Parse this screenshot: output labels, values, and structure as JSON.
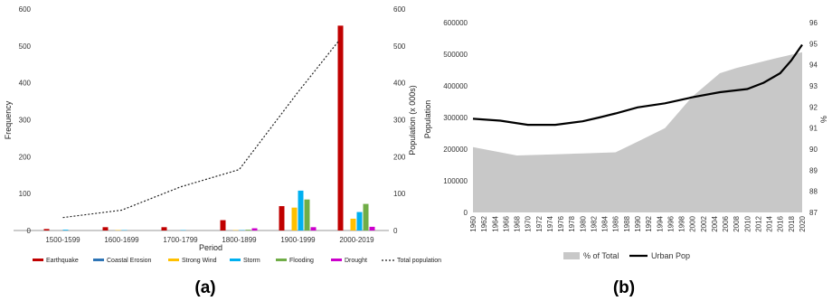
{
  "chart_data": [
    {
      "type": "bar",
      "panel_label": "(a)",
      "xlabel": "Period",
      "ylabel": "Frequency",
      "y2label": "Population (x 000s)",
      "ylim": [
        0,
        600
      ],
      "y2lim": [
        0,
        600
      ],
      "yticks": [
        0,
        100,
        200,
        300,
        400,
        500,
        600
      ],
      "categories": [
        "1500-1599",
        "1600-1699",
        "1700-1799",
        "1800-1899",
        "1900-1999",
        "2000-2019"
      ],
      "series": [
        {
          "name": "Earthquake",
          "color": "#c00000",
          "values": [
            4,
            9,
            9,
            28,
            66,
            555
          ]
        },
        {
          "name": "Coastal Erosion",
          "color": "#2e75b6",
          "values": [
            0,
            0,
            0,
            0,
            0,
            0
          ]
        },
        {
          "name": "Strong Wind",
          "color": "#ffc000",
          "values": [
            0,
            1,
            0,
            1,
            62,
            32
          ]
        },
        {
          "name": "Storm",
          "color": "#00b0f0",
          "values": [
            2,
            1,
            1,
            1,
            108,
            50
          ]
        },
        {
          "name": "Flooding",
          "color": "#70ad47",
          "values": [
            0,
            0,
            0,
            2,
            84,
            72
          ]
        },
        {
          "name": "Drought",
          "color": "#cc00cc",
          "values": [
            0,
            0,
            0,
            6,
            9,
            10
          ]
        }
      ],
      "line_series": {
        "name": "Total population",
        "axis": "secondary",
        "style": "dotted",
        "x": [
          1550,
          1650,
          1750,
          1850,
          1950,
          2010
        ],
        "values": [
          35,
          55,
          118,
          165,
          375,
          515
        ]
      },
      "legend_position": "bottom"
    },
    {
      "type": "area",
      "panel_label": "(b)",
      "ylabel": "Population",
      "y2label": "%",
      "ylim": [
        0,
        600000
      ],
      "y2lim": [
        87,
        96
      ],
      "yticks": [
        0,
        100000,
        200000,
        300000,
        400000,
        500000,
        600000
      ],
      "y2ticks": [
        87,
        88,
        89,
        90,
        91,
        92,
        93,
        94,
        95,
        96
      ],
      "xticks": [
        "1960",
        "1962",
        "1964",
        "1966",
        "1968",
        "1970",
        "1972",
        "1974",
        "1976",
        "1978",
        "1980",
        "1982",
        "1984",
        "1986",
        "1988",
        "1990",
        "1992",
        "1994",
        "1996",
        "1998",
        "2000",
        "2002",
        "2004",
        "2006",
        "2008",
        "2010",
        "2012",
        "2014",
        "2016",
        "2018",
        "2020"
      ],
      "area_series": {
        "name": "% of Total",
        "color": "#c8c8c8",
        "axis": "secondary",
        "x": [
          1960,
          1968,
          1975,
          1980,
          1986,
          1990,
          1995,
          2000,
          2005,
          2008,
          2015,
          2020
        ],
        "values": [
          90.1,
          89.7,
          89.75,
          89.8,
          89.85,
          90.35,
          91.0,
          92.5,
          93.6,
          93.85,
          94.3,
          94.6
        ]
      },
      "line_series": {
        "name": "Urban Pop",
        "color": "#000000",
        "axis": "primary",
        "x": [
          1960,
          1965,
          1970,
          1975,
          1980,
          1983,
          1986,
          1990,
          1995,
          2000,
          2005,
          2010,
          2013,
          2016,
          2018,
          2020
        ],
        "values": [
          296000,
          290000,
          277000,
          277000,
          288000,
          300000,
          313000,
          332000,
          345000,
          364000,
          380000,
          390000,
          410000,
          440000,
          480000,
          530000
        ]
      },
      "legend_position": "bottom"
    }
  ]
}
